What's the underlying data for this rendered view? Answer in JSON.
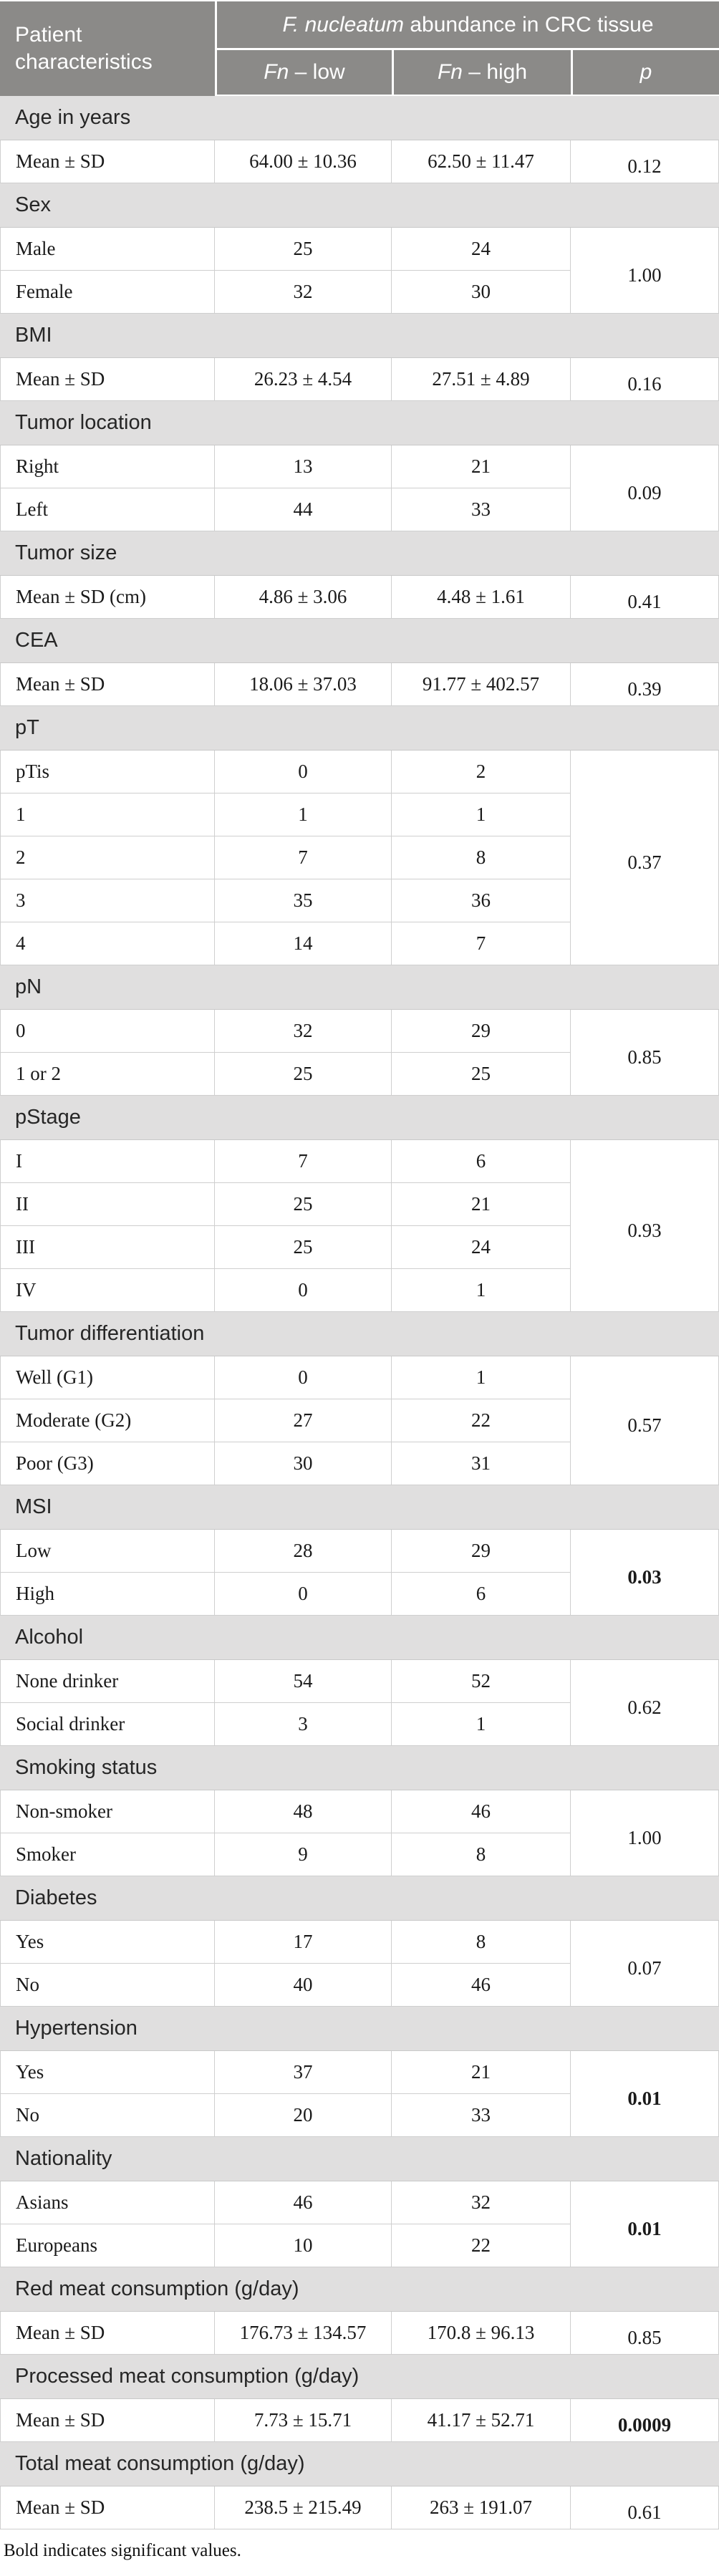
{
  "colors": {
    "header_bg": "#8b8a88",
    "section_bg": "#e0dfdf",
    "border": "#cfcfcf",
    "header_text": "#ffffff",
    "body_text": "#1a1a1a"
  },
  "table": {
    "header": {
      "patient": "Patient characteristics",
      "group_italic": "F. nucleatum",
      "group_rest": " abundance in CRC tissue",
      "fn_low_italic": "Fn",
      "fn_low_rest": " – low",
      "fn_high_italic": "Fn",
      "fn_high_rest": " – high",
      "p": "p"
    },
    "sections": [
      {
        "label": "Age in years",
        "p": "0.12",
        "p_bold": false,
        "rows": [
          {
            "label": "Mean ± SD",
            "low": "64.00 ± 10.36",
            "high": "62.50 ± 11.47"
          }
        ]
      },
      {
        "label": "Sex",
        "p": "1.00",
        "p_bold": false,
        "rows": [
          {
            "label": "Male",
            "low": "25",
            "high": "24"
          },
          {
            "label": "Female",
            "low": "32",
            "high": "30"
          }
        ]
      },
      {
        "label": "BMI",
        "p": "0.16",
        "p_bold": false,
        "rows": [
          {
            "label": "Mean ± SD",
            "low": "26.23 ± 4.54",
            "high": "27.51 ± 4.89"
          }
        ]
      },
      {
        "label": "Tumor location",
        "p": "0.09",
        "p_bold": false,
        "rows": [
          {
            "label": "Right",
            "low": "13",
            "high": "21"
          },
          {
            "label": "Left",
            "low": "44",
            "high": "33"
          }
        ]
      },
      {
        "label": "Tumor size",
        "p": "0.41",
        "p_bold": false,
        "rows": [
          {
            "label": "Mean ± SD (cm)",
            "low": "4.86 ± 3.06",
            "high": "4.48 ± 1.61"
          }
        ]
      },
      {
        "label": "CEA",
        "p": "0.39",
        "p_bold": false,
        "rows": [
          {
            "label": "Mean ± SD",
            "low": "18.06 ± 37.03",
            "high": "91.77 ± 402.57"
          }
        ]
      },
      {
        "label": "pT",
        "p": "0.37",
        "p_bold": false,
        "rows": [
          {
            "label": "pTis",
            "low": "0",
            "high": "2"
          },
          {
            "label": "1",
            "low": "1",
            "high": "1"
          },
          {
            "label": "2",
            "low": "7",
            "high": "8"
          },
          {
            "label": "3",
            "low": "35",
            "high": "36"
          },
          {
            "label": "4",
            "low": "14",
            "high": "7"
          }
        ]
      },
      {
        "label": "pN",
        "p": "0.85",
        "p_bold": false,
        "rows": [
          {
            "label": "0",
            "low": "32",
            "high": "29"
          },
          {
            "label": "1 or 2",
            "low": "25",
            "high": "25"
          }
        ]
      },
      {
        "label": "pStage",
        "p": "0.93",
        "p_bold": false,
        "rows": [
          {
            "label": "I",
            "low": "7",
            "high": "6"
          },
          {
            "label": "II",
            "low": "25",
            "high": "21"
          },
          {
            "label": "III",
            "low": "25",
            "high": "24"
          },
          {
            "label": "IV",
            "low": "0",
            "high": "1"
          }
        ]
      },
      {
        "label": "Tumor differentiation",
        "p": "0.57",
        "p_bold": false,
        "rows": [
          {
            "label": "Well (G1)",
            "low": "0",
            "high": "1"
          },
          {
            "label": "Moderate (G2)",
            "low": "27",
            "high": "22"
          },
          {
            "label": "Poor (G3)",
            "low": "30",
            "high": "31"
          }
        ]
      },
      {
        "label": "MSI",
        "p": "0.03",
        "p_bold": true,
        "rows": [
          {
            "label": "Low",
            "low": "28",
            "high": "29"
          },
          {
            "label": "High",
            "low": "0",
            "high": "6"
          }
        ]
      },
      {
        "label": "Alcohol",
        "p": "0.62",
        "p_bold": false,
        "rows": [
          {
            "label": "None drinker",
            "low": "54",
            "high": "52"
          },
          {
            "label": "Social drinker",
            "low": "3",
            "high": "1"
          }
        ]
      },
      {
        "label": "Smoking status",
        "p": "1.00",
        "p_bold": false,
        "rows": [
          {
            "label": "Non-smoker",
            "low": "48",
            "high": "46"
          },
          {
            "label": "Smoker",
            "low": "9",
            "high": "8"
          }
        ]
      },
      {
        "label": "Diabetes",
        "p": "0.07",
        "p_bold": false,
        "rows": [
          {
            "label": "Yes",
            "low": "17",
            "high": "8"
          },
          {
            "label": "No",
            "low": "40",
            "high": "46"
          }
        ]
      },
      {
        "label": "Hypertension",
        "p": "0.01",
        "p_bold": true,
        "rows": [
          {
            "label": "Yes",
            "low": "37",
            "high": "21"
          },
          {
            "label": "No",
            "low": "20",
            "high": "33"
          }
        ]
      },
      {
        "label": "Nationality",
        "p": "0.01",
        "p_bold": true,
        "rows": [
          {
            "label": "Asians",
            "low": "46",
            "high": "32"
          },
          {
            "label": "Europeans",
            "low": "10",
            "high": "22"
          }
        ]
      },
      {
        "label": "Red meat consumption (g/day)",
        "p": "0.85",
        "p_bold": false,
        "rows": [
          {
            "label": "Mean ± SD",
            "low": "176.73 ± 134.57",
            "high": "170.8 ± 96.13"
          }
        ]
      },
      {
        "label": "Processed meat consumption (g/day)",
        "p": "0.0009",
        "p_bold": true,
        "rows": [
          {
            "label": "Mean ± SD",
            "low": "7.73 ± 15.71",
            "high": "41.17 ± 52.71"
          }
        ]
      },
      {
        "label": "Total meat consumption (g/day)",
        "p": "0.61",
        "p_bold": false,
        "rows": [
          {
            "label": "Mean ± SD",
            "low": "238.5 ± 215.49",
            "high": "263 ± 191.07"
          }
        ]
      }
    ],
    "footnote": "Bold indicates significant values."
  }
}
